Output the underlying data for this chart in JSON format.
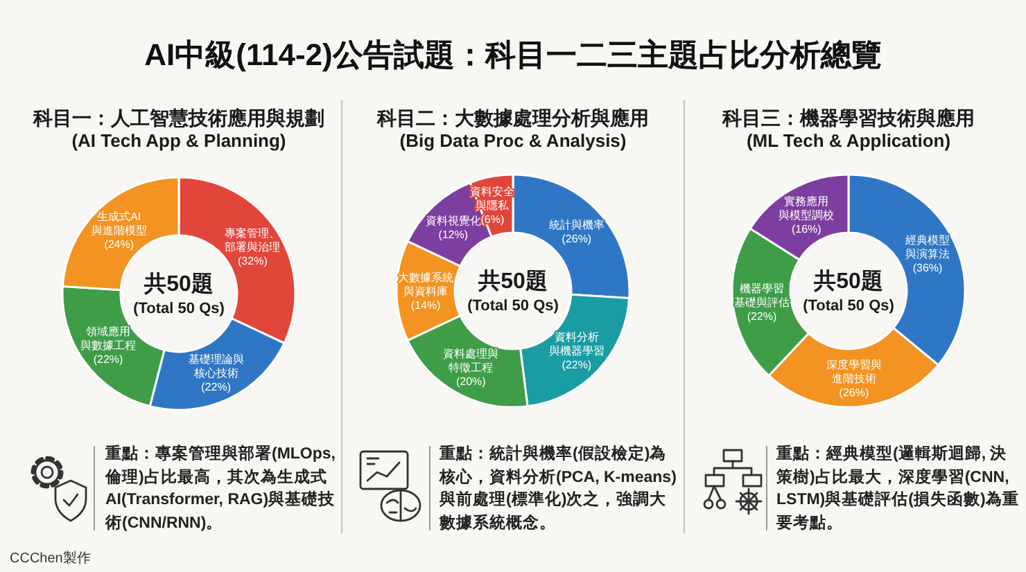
{
  "chart_data": [
    {
      "type": "donut",
      "title": "科目一：人工智慧技術應用與規劃",
      "subtitle": "(AI Tech App & Planning)",
      "categories": [
        "專案管理、部署與治理",
        "基礎理論與核心技術",
        "領域應用與數據工程",
        "生成式AI與進階模型"
      ],
      "values": [
        32,
        22,
        22,
        24
      ],
      "colors": [
        "#e2463b",
        "#2f77c5",
        "#3f9d48",
        "#f39322"
      ],
      "value_labels": [
        "(32%)",
        "(22%)",
        "(22%)",
        "(24%)"
      ],
      "annotations": [
        "共50題",
        "(Total 50 Qs)",
        "重點：專案管理與部署(MLOps, 倫理)占比最高，其次為生成式AI(Transformer, RAG)與基礎技術(CNN/RNN)。",
        "AI中級(114-2)公告試題：科目一二三主題占比分析總覽",
        "CCChen製作"
      ]
    },
    {
      "type": "donut",
      "title": "科目二：大數據處理分析與應用",
      "subtitle": "(Big Data Proc & Analysis)",
      "categories": [
        "統計與機率",
        "資料分析與機器學習",
        "資料處理與特徵工程",
        "大數據系統與資料庫",
        "資料視覺化",
        "資料安全與隱私"
      ],
      "values": [
        26,
        22,
        20,
        14,
        12,
        6
      ],
      "colors": [
        "#2f77c5",
        "#1a9ca3",
        "#3f9d48",
        "#f39322",
        "#7d3f9f",
        "#e2463b"
      ],
      "value_labels": [
        "(26%)",
        "(22%)",
        "(20%)",
        "(14%)",
        "(12%)",
        "(6%)"
      ],
      "annotations": [
        "共50題",
        "(Total 50 Qs)",
        "重點：統計與機率(假設檢定)為核心，資料分析(PCA, K-means)與前處理(標準化)次之，強調大數據系統概念。"
      ]
    },
    {
      "type": "donut",
      "title": "科目三：機器學習技術與應用",
      "subtitle": "(ML Tech & Application)",
      "categories": [
        "經典模型與演算法",
        "深度學習與進階技術",
        "機器學習基礎與評估",
        "實務應用與模型調校"
      ],
      "values": [
        36,
        26,
        22,
        16
      ],
      "colors": [
        "#2f77c5",
        "#f39322",
        "#3f9d48",
        "#7d3f9f"
      ],
      "value_labels": [
        "(36%)",
        "(26%)",
        "(22%)",
        "(16%)"
      ],
      "annotations": [
        "共50題",
        "(Total 50 Qs)",
        "重點：經典模型(邏輯斯迴歸, 決策樹)占比最大，深度學習(CNN, LSTM)與基礎評估(損失函數)為重要考點。"
      ]
    }
  ]
}
